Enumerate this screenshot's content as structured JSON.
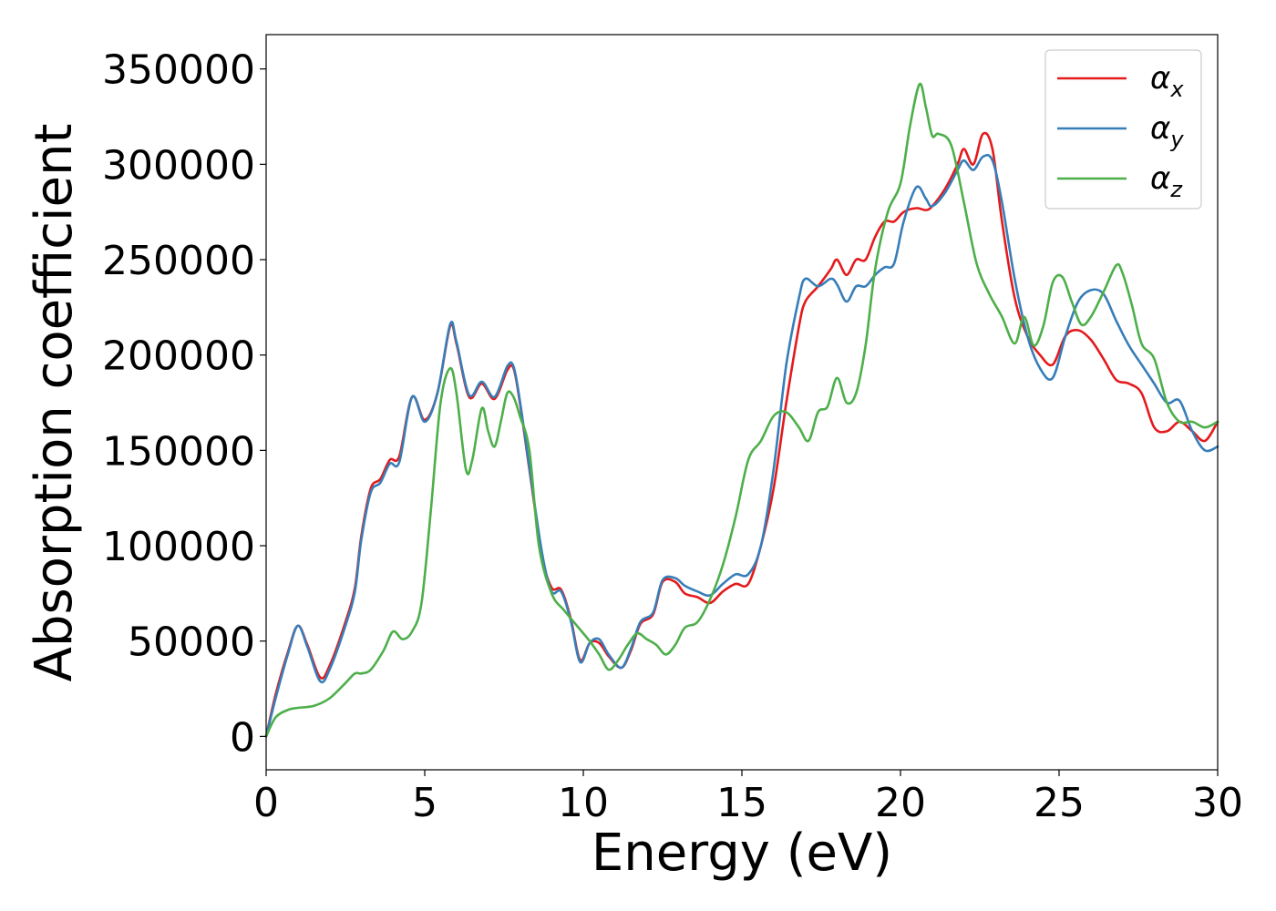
{
  "chart_data": {
    "type": "line",
    "title": "",
    "xlabel": "Energy (eV)",
    "ylabel": "Absorption coefficient",
    "xlim": [
      0,
      30
    ],
    "ylim": [
      -17500,
      368000
    ],
    "xticks": [
      0,
      5,
      10,
      15,
      20,
      25,
      30
    ],
    "yticks": [
      0,
      50000,
      100000,
      150000,
      200000,
      250000,
      300000,
      350000
    ],
    "grid": false,
    "legend_position": "top-right",
    "series": [
      {
        "name": "α",
        "subscript": "x",
        "color": "#e41a1c",
        "x": [
          0,
          0.3,
          0.7,
          1.0,
          1.3,
          1.7,
          2.0,
          2.5,
          2.8,
          3.0,
          3.3,
          3.6,
          3.9,
          4.2,
          4.6,
          5.0,
          5.4,
          5.8,
          6.0,
          6.4,
          6.8,
          7.2,
          7.6,
          7.8,
          8.0,
          8.3,
          8.7,
          9.0,
          9.3,
          9.6,
          9.9,
          10.2,
          10.5,
          10.8,
          11.2,
          11.5,
          11.8,
          12.2,
          12.5,
          12.9,
          13.2,
          13.6,
          14.0,
          14.4,
          14.8,
          15.2,
          15.6,
          16.0,
          16.4,
          16.8,
          17.0,
          17.4,
          17.8,
          18.0,
          18.3,
          18.6,
          18.9,
          19.2,
          19.5,
          19.8,
          20.1,
          20.5,
          20.8,
          21.0,
          21.4,
          21.8,
          22.0,
          22.3,
          22.6,
          22.9,
          23.2,
          23.6,
          24.0,
          24.4,
          24.8,
          25.2,
          25.6,
          26.0,
          26.4,
          26.8,
          27.2,
          27.6,
          28.0,
          28.4,
          28.8,
          29.2,
          29.6,
          30.0
        ],
        "values": [
          0,
          22000,
          45000,
          58000,
          48000,
          31000,
          37000,
          60000,
          78000,
          105000,
          130000,
          135000,
          145000,
          147000,
          178000,
          166000,
          180000,
          215000,
          206000,
          178000,
          185000,
          177000,
          192000,
          193000,
          175000,
          140000,
          95000,
          78000,
          77000,
          62000,
          40000,
          49000,
          49000,
          42000,
          36000,
          45000,
          59000,
          64000,
          81000,
          81000,
          75000,
          73000,
          70000,
          76000,
          80000,
          80000,
          100000,
          130000,
          175000,
          215000,
          228000,
          236000,
          245000,
          250000,
          242000,
          250000,
          250000,
          262000,
          270000,
          270000,
          275000,
          277000,
          276000,
          278000,
          287000,
          300000,
          308000,
          300000,
          316000,
          308000,
          270000,
          230000,
          210000,
          200000,
          195000,
          210000,
          213000,
          208000,
          198000,
          187000,
          185000,
          180000,
          162000,
          160000,
          165000,
          160000,
          155000,
          165000
        ]
      },
      {
        "name": "α",
        "subscript": "y",
        "color": "#377eb8",
        "x": [
          0,
          0.3,
          0.7,
          1.0,
          1.3,
          1.7,
          2.0,
          2.5,
          2.8,
          3.0,
          3.3,
          3.6,
          3.9,
          4.2,
          4.6,
          5.0,
          5.4,
          5.8,
          6.0,
          6.4,
          6.8,
          7.2,
          7.6,
          7.8,
          8.0,
          8.3,
          8.7,
          9.0,
          9.3,
          9.6,
          9.9,
          10.2,
          10.5,
          10.8,
          11.2,
          11.5,
          11.8,
          12.2,
          12.5,
          12.9,
          13.2,
          13.6,
          14.0,
          14.4,
          14.8,
          15.2,
          15.6,
          16.0,
          16.4,
          16.8,
          17.0,
          17.4,
          17.8,
          18.0,
          18.3,
          18.6,
          18.9,
          19.2,
          19.5,
          19.8,
          20.1,
          20.5,
          20.8,
          21.0,
          21.4,
          21.8,
          22.0,
          22.3,
          22.6,
          22.9,
          23.2,
          23.6,
          24.0,
          24.4,
          24.8,
          25.2,
          25.6,
          26.0,
          26.4,
          26.8,
          27.2,
          27.6,
          28.0,
          28.4,
          28.8,
          29.2,
          29.6,
          30.0
        ],
        "values": [
          0,
          20000,
          44000,
          58000,
          47000,
          29000,
          35000,
          58000,
          76000,
          103000,
          128000,
          133000,
          143000,
          144000,
          178000,
          165000,
          180000,
          216000,
          207000,
          179000,
          186000,
          178000,
          194000,
          194000,
          176000,
          141000,
          96000,
          76000,
          76000,
          61000,
          39000,
          49000,
          51000,
          43000,
          36000,
          46000,
          60000,
          65000,
          82000,
          83000,
          79000,
          76000,
          74000,
          80000,
          85000,
          85000,
          100000,
          140000,
          195000,
          230000,
          240000,
          236000,
          240000,
          237000,
          228000,
          236000,
          236000,
          242000,
          246000,
          248000,
          270000,
          288000,
          282000,
          278000,
          285000,
          297000,
          302000,
          297000,
          304000,
          302000,
          280000,
          240000,
          210000,
          193000,
          188000,
          210000,
          228000,
          234000,
          232000,
          218000,
          205000,
          195000,
          185000,
          175000,
          176000,
          160000,
          150000,
          152000
        ]
      },
      {
        "name": "α",
        "subscript": "z",
        "color": "#4daf4a",
        "x": [
          0,
          0.3,
          0.7,
          1.0,
          1.5,
          2.0,
          2.5,
          2.8,
          3.0,
          3.3,
          3.7,
          4.0,
          4.3,
          4.6,
          4.9,
          5.2,
          5.5,
          5.8,
          6.0,
          6.3,
          6.5,
          6.8,
          7.0,
          7.2,
          7.4,
          7.6,
          7.8,
          8.0,
          8.3,
          8.6,
          9.0,
          9.4,
          9.8,
          10.2,
          10.5,
          10.8,
          11.1,
          11.4,
          11.7,
          12.0,
          12.3,
          12.6,
          12.9,
          13.2,
          13.6,
          14.0,
          14.4,
          14.8,
          15.2,
          15.6,
          16.0,
          16.4,
          16.8,
          17.1,
          17.4,
          17.7,
          18.0,
          18.3,
          18.6,
          18.9,
          19.2,
          19.6,
          20.0,
          20.3,
          20.6,
          20.8,
          21.0,
          21.2,
          21.6,
          22.0,
          22.4,
          22.8,
          23.2,
          23.6,
          23.9,
          24.2,
          24.5,
          24.8,
          25.1,
          25.4,
          25.7,
          26.0,
          26.4,
          26.8,
          27.0,
          27.3,
          27.6,
          28.0,
          28.4,
          28.8,
          29.2,
          29.6,
          30.0
        ],
        "values": [
          0,
          10000,
          14000,
          15000,
          16000,
          20000,
          28000,
          33000,
          33000,
          35000,
          45000,
          55000,
          51000,
          55000,
          70000,
          120000,
          175000,
          193000,
          180000,
          140000,
          145000,
          172000,
          160000,
          152000,
          165000,
          180000,
          178000,
          168000,
          150000,
          100000,
          75000,
          66000,
          58000,
          50000,
          43000,
          35000,
          40000,
          48000,
          54000,
          51000,
          48000,
          43000,
          48000,
          57000,
          60000,
          72000,
          90000,
          115000,
          145000,
          155000,
          168000,
          170000,
          162000,
          155000,
          170000,
          173000,
          188000,
          175000,
          180000,
          205000,
          245000,
          275000,
          290000,
          320000,
          342000,
          330000,
          315000,
          316000,
          310000,
          280000,
          248000,
          232000,
          220000,
          206000,
          220000,
          205000,
          215000,
          238000,
          241000,
          228000,
          216000,
          220000,
          233000,
          247000,
          243000,
          226000,
          206000,
          198000,
          175000,
          165000,
          165000,
          162000,
          165000
        ]
      }
    ]
  }
}
